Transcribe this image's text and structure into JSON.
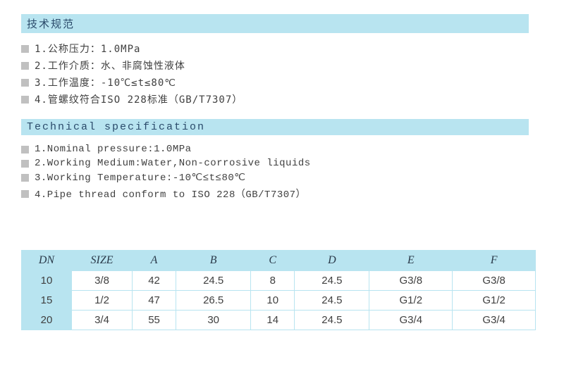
{
  "zh_section": {
    "title": "技术规范",
    "items": [
      "1.公称压力：1.0MPa",
      "2.工作介质：水、非腐蚀性液体",
      "3.工作温度：-10℃≤t≤80℃",
      "4.管螺纹符合ISO 228标准（GB/T7307）"
    ]
  },
  "en_section": {
    "title": "Technical specification",
    "items": [
      "1.Nominal pressure:1.0MPa",
      "2.Working Medium:Water,Non-corrosive liquids",
      "3.Working Temperature:-10℃≤t≤80℃",
      "4.Pipe thread conform to ISO 228（GB/T7307）"
    ]
  },
  "table": {
    "columns": [
      "DN",
      "SIZE",
      "A",
      "B",
      "C",
      "D",
      "E",
      "F"
    ],
    "rows": [
      [
        "10",
        "3/8",
        "42",
        "24.5",
        "8",
        "24.5",
        "G3/8",
        "G3/8"
      ],
      [
        "15",
        "1/2",
        "47",
        "26.5",
        "10",
        "24.5",
        "G1/2",
        "G1/2"
      ],
      [
        "20",
        "3/4",
        "55",
        "30",
        "14",
        "24.5",
        "G3/4",
        "G3/4"
      ]
    ]
  },
  "colors": {
    "header_bg": "#b8e4f0",
    "border": "#b8e4f0",
    "bullet": "#c0c0c0",
    "text": "#404040",
    "header_text": "#2a4a6a"
  }
}
